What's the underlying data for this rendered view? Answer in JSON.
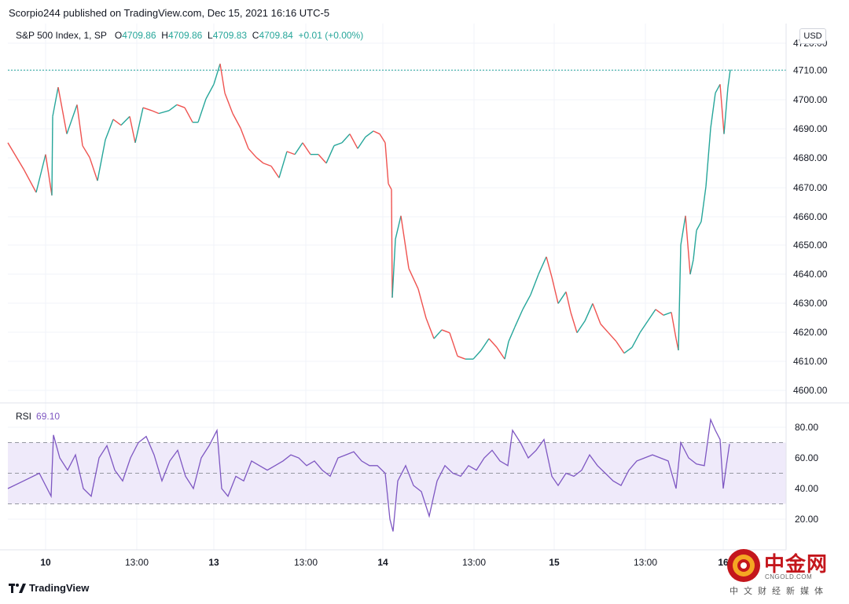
{
  "header": {
    "text": "Scorpio244 published on TradingView.com, Dec 15, 2021 16:16 UTC-5"
  },
  "legend": {
    "symbol": "S&P 500 Index, 1, SP",
    "open_label": "O",
    "open": "4709.86",
    "high_label": "H",
    "high": "4709.86",
    "low_label": "L",
    "low": "4709.83",
    "close_label": "C",
    "close": "4709.84",
    "change": "+0.01 (+0.00%)"
  },
  "currency": "USD",
  "rsi": {
    "label": "RSI",
    "value": "69.10"
  },
  "colors": {
    "up": "#26a69a",
    "down": "#ef5350",
    "rsi": "#7e57c2",
    "grid": "#f0f3fa",
    "band": "#efeafa"
  },
  "footer": {
    "brand": "TradingView"
  },
  "watermark": {
    "title": "中金网",
    "url": "CNGOLD.COM",
    "subtitle": "中文财经新媒体"
  },
  "chart_data": [
    {
      "type": "line",
      "title": "S&P 500 Index, 1, SP",
      "y_tick_labels": [
        "4600.00",
        "4610.00",
        "4620.00",
        "4630.00",
        "4640.00",
        "4650.00",
        "4660.00",
        "4670.00",
        "4680.00",
        "4690.00",
        "4700.00",
        "4710.00",
        "4720.00"
      ],
      "x_tick_labels": [
        "10",
        "13:00",
        "13",
        "13:00",
        "14",
        "13:00",
        "15",
        "13:00",
        "16"
      ],
      "ylim": [
        4596,
        4722
      ],
      "last_price": 4709.84,
      "series": [
        {
          "values": [
            [
              0,
              4685
            ],
            [
              20,
              4676
            ],
            [
              36,
              4668
            ],
            [
              48,
              4681
            ],
            [
              56,
              4667
            ],
            [
              57,
              4694
            ],
            [
              64,
              4704
            ],
            [
              75,
              4688
            ],
            [
              88,
              4698
            ],
            [
              95,
              4684
            ],
            [
              104,
              4680
            ],
            [
              114,
              4672
            ],
            [
              124,
              4686
            ],
            [
              134,
              4693
            ],
            [
              144,
              4691
            ],
            [
              155,
              4694
            ],
            [
              162,
              4685
            ],
            [
              172,
              4697
            ],
            [
              183,
              4696
            ],
            [
              192,
              4695
            ],
            [
              205,
              4696
            ],
            [
              215,
              4698
            ],
            [
              225,
              4697
            ],
            [
              235,
              4692
            ],
            [
              242,
              4692
            ],
            [
              252,
              4700
            ],
            [
              262,
              4705
            ],
            [
              270,
              4712
            ],
            [
              276,
              4702
            ],
            [
              286,
              4695
            ],
            [
              296,
              4690
            ],
            [
              306,
              4683
            ],
            [
              316,
              4680
            ],
            [
              325,
              4678
            ],
            [
              335,
              4677
            ],
            [
              345,
              4673
            ],
            [
              355,
              4682
            ],
            [
              365,
              4681
            ],
            [
              375,
              4685
            ],
            [
              385,
              4681
            ],
            [
              395,
              4681
            ],
            [
              405,
              4678
            ],
            [
              415,
              4684
            ],
            [
              425,
              4685
            ],
            [
              435,
              4688
            ],
            [
              445,
              4683
            ],
            [
              455,
              4687
            ],
            [
              465,
              4689
            ],
            [
              473,
              4688
            ],
            [
              480,
              4685
            ],
            [
              484,
              4671
            ],
            [
              488,
              4669
            ],
            [
              489,
              4632
            ],
            [
              493,
              4652
            ],
            [
              500,
              4660
            ],
            [
              510,
              4642
            ],
            [
              522,
              4635
            ],
            [
              532,
              4625
            ],
            [
              542,
              4618
            ],
            [
              552,
              4621
            ],
            [
              562,
              4620
            ],
            [
              572,
              4612
            ],
            [
              582,
              4611
            ],
            [
              592,
              4611
            ],
            [
              602,
              4614
            ],
            [
              612,
              4618
            ],
            [
              622,
              4615
            ],
            [
              632,
              4611
            ],
            [
              637,
              4617
            ],
            [
              645,
              4622
            ],
            [
              655,
              4628
            ],
            [
              665,
              4633
            ],
            [
              675,
              4640
            ],
            [
              685,
              4646
            ],
            [
              692,
              4639
            ],
            [
              700,
              4630
            ],
            [
              710,
              4634
            ],
            [
              716,
              4627
            ],
            [
              724,
              4620
            ],
            [
              734,
              4624
            ],
            [
              744,
              4630
            ],
            [
              754,
              4623
            ],
            [
              764,
              4620
            ],
            [
              774,
              4617
            ],
            [
              784,
              4613
            ],
            [
              794,
              4615
            ],
            [
              804,
              4620
            ],
            [
              814,
              4624
            ],
            [
              824,
              4628
            ],
            [
              834,
              4626
            ],
            [
              844,
              4627
            ],
            [
              850,
              4618
            ],
            [
              853,
              4614
            ],
            [
              856,
              4650
            ],
            [
              862,
              4660
            ],
            [
              868,
              4640
            ],
            [
              872,
              4645
            ],
            [
              876,
              4655
            ],
            [
              882,
              4658
            ],
            [
              888,
              4670
            ],
            [
              894,
              4690
            ],
            [
              900,
              4702
            ],
            [
              906,
              4705
            ],
            [
              911,
              4688
            ],
            [
              916,
              4704
            ],
            [
              919,
              4710
            ]
          ]
        }
      ]
    },
    {
      "type": "line",
      "title": "RSI",
      "y_tick_labels": [
        "20.00",
        "40.00",
        "60.00",
        "80.00"
      ],
      "ylim": [
        0,
        100
      ],
      "bands": [
        30,
        50,
        70
      ],
      "series": [
        {
          "name": "RSI",
          "values": [
            [
              0,
              40
            ],
            [
              20,
              45
            ],
            [
              40,
              50
            ],
            [
              55,
              35
            ],
            [
              58,
              75
            ],
            [
              66,
              60
            ],
            [
              76,
              52
            ],
            [
              86,
              62
            ],
            [
              96,
              40
            ],
            [
              106,
              35
            ],
            [
              116,
              60
            ],
            [
              126,
              68
            ],
            [
              136,
              52
            ],
            [
              146,
              45
            ],
            [
              156,
              60
            ],
            [
              166,
              70
            ],
            [
              176,
              74
            ],
            [
              186,
              62
            ],
            [
              196,
              45
            ],
            [
              206,
              58
            ],
            [
              216,
              65
            ],
            [
              226,
              48
            ],
            [
              236,
              40
            ],
            [
              246,
              60
            ],
            [
              256,
              68
            ],
            [
              266,
              78
            ],
            [
              272,
              40
            ],
            [
              280,
              35
            ],
            [
              290,
              48
            ],
            [
              300,
              45
            ],
            [
              310,
              58
            ],
            [
              320,
              55
            ],
            [
              330,
              52
            ],
            [
              340,
              55
            ],
            [
              350,
              58
            ],
            [
              360,
              62
            ],
            [
              370,
              60
            ],
            [
              380,
              55
            ],
            [
              390,
              58
            ],
            [
              400,
              52
            ],
            [
              410,
              48
            ],
            [
              420,
              60
            ],
            [
              430,
              62
            ],
            [
              440,
              64
            ],
            [
              450,
              58
            ],
            [
              460,
              55
            ],
            [
              470,
              55
            ],
            [
              480,
              50
            ],
            [
              486,
              20
            ],
            [
              490,
              12
            ],
            [
              496,
              45
            ],
            [
              506,
              55
            ],
            [
              516,
              42
            ],
            [
              526,
              38
            ],
            [
              536,
              22
            ],
            [
              546,
              45
            ],
            [
              556,
              55
            ],
            [
              566,
              50
            ],
            [
              576,
              48
            ],
            [
              586,
              55
            ],
            [
              596,
              52
            ],
            [
              606,
              60
            ],
            [
              616,
              65
            ],
            [
              626,
              58
            ],
            [
              636,
              55
            ],
            [
              642,
              78
            ],
            [
              652,
              70
            ],
            [
              662,
              60
            ],
            [
              672,
              65
            ],
            [
              682,
              72
            ],
            [
              692,
              48
            ],
            [
              700,
              42
            ],
            [
              710,
              50
            ],
            [
              720,
              48
            ],
            [
              730,
              52
            ],
            [
              740,
              62
            ],
            [
              750,
              55
            ],
            [
              760,
              50
            ],
            [
              770,
              45
            ],
            [
              780,
              42
            ],
            [
              790,
              52
            ],
            [
              800,
              58
            ],
            [
              810,
              60
            ],
            [
              820,
              62
            ],
            [
              830,
              60
            ],
            [
              840,
              58
            ],
            [
              850,
              40
            ],
            [
              856,
              70
            ],
            [
              866,
              60
            ],
            [
              876,
              56
            ],
            [
              886,
              55
            ],
            [
              894,
              85
            ],
            [
              900,
              78
            ],
            [
              906,
              72
            ],
            [
              910,
              40
            ],
            [
              914,
              55
            ],
            [
              918,
              69.1
            ]
          ]
        }
      ]
    }
  ]
}
